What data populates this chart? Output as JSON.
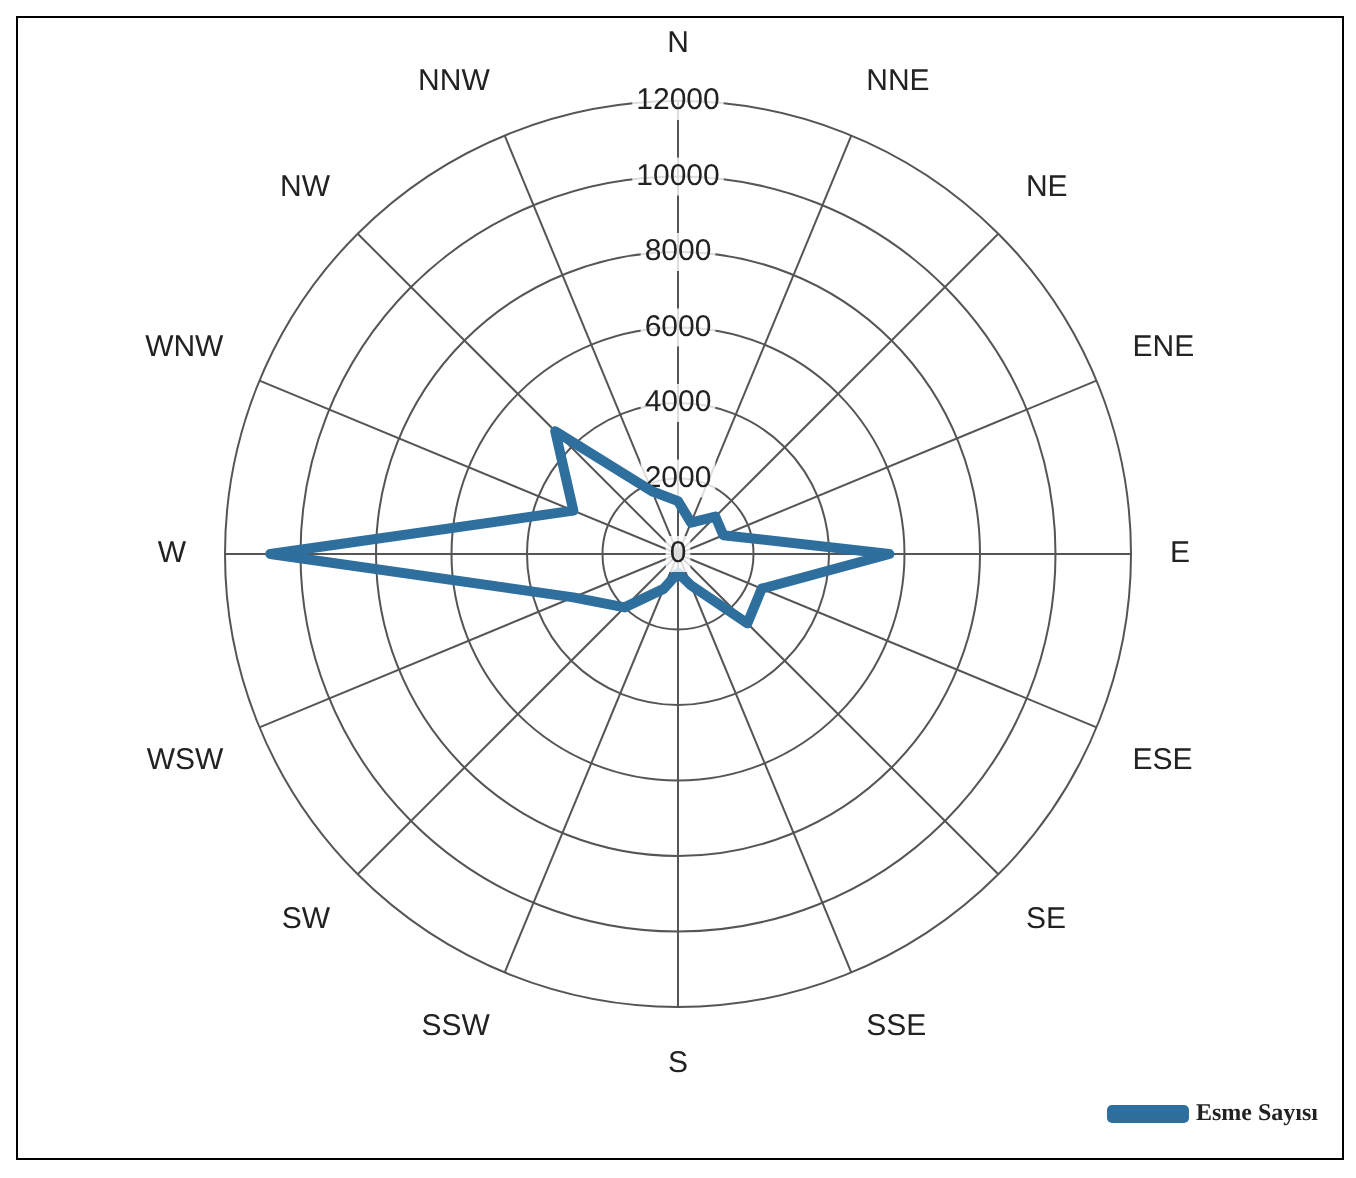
{
  "chart_data": {
    "type": "radar",
    "categories": [
      "N",
      "NNE",
      "NE",
      "ENE",
      "E",
      "ESE",
      "SE",
      "SSE",
      "S",
      "SSW",
      "SW",
      "WSW",
      "W",
      "WNW",
      "NW",
      "NNW"
    ],
    "series": [
      {
        "name": "Esme Sayısı",
        "color": "#2e6f9e",
        "values": [
          1400,
          900,
          1400,
          1300,
          5600,
          2400,
          2600,
          900,
          500,
          1000,
          2000,
          3000,
          10800,
          3000,
          4600,
          1800
        ]
      }
    ],
    "ylim": [
      0,
      12000
    ],
    "yticks": [
      0,
      2000,
      4000,
      6000,
      8000,
      10000,
      12000
    ],
    "grid": true,
    "legend": "bottom right",
    "marker": "none",
    "line_style": "solid"
  }
}
